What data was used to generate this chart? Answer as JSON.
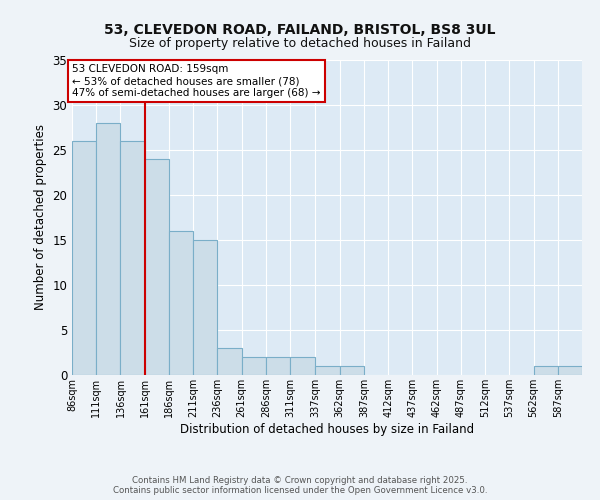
{
  "title_line1": "53, CLEVEDON ROAD, FAILAND, BRISTOL, BS8 3UL",
  "title_line2": "Size of property relative to detached houses in Failand",
  "xlabel": "Distribution of detached houses by size in Failand",
  "ylabel": "Number of detached properties",
  "bin_edges": [
    86,
    111,
    136,
    161,
    186,
    211,
    236,
    261,
    286,
    311,
    337,
    362,
    387,
    412,
    437,
    462,
    487,
    512,
    537,
    562,
    587,
    612
  ],
  "bin_labels": [
    "86sqm",
    "111sqm",
    "136sqm",
    "161sqm",
    "186sqm",
    "211sqm",
    "236sqm",
    "261sqm",
    "286sqm",
    "311sqm",
    "337sqm",
    "362sqm",
    "387sqm",
    "412sqm",
    "437sqm",
    "462sqm",
    "487sqm",
    "512sqm",
    "537sqm",
    "562sqm",
    "587sqm"
  ],
  "counts": [
    26,
    28,
    26,
    24,
    16,
    15,
    3,
    2,
    2,
    2,
    1,
    1,
    0,
    0,
    0,
    0,
    0,
    0,
    0,
    1,
    1
  ],
  "bar_color": "#ccdde8",
  "bar_edge_color": "#7aaec8",
  "red_line_x": 161,
  "annotation_title": "53 CLEVEDON ROAD: 159sqm",
  "annotation_line2": "← 53% of detached houses are smaller (78)",
  "annotation_line3": "47% of semi-detached houses are larger (68) →",
  "annotation_box_facecolor": "#ffffff",
  "annotation_box_edgecolor": "#cc0000",
  "red_line_color": "#cc0000",
  "ylim": [
    0,
    35
  ],
  "yticks": [
    0,
    5,
    10,
    15,
    20,
    25,
    30,
    35
  ],
  "axes_bg_color": "#ddeaf5",
  "grid_color": "#ffffff",
  "fig_bg_color": "#eef3f8",
  "footer_text": "Contains HM Land Registry data © Crown copyright and database right 2025.\nContains public sector information licensed under the Open Government Licence v3.0."
}
